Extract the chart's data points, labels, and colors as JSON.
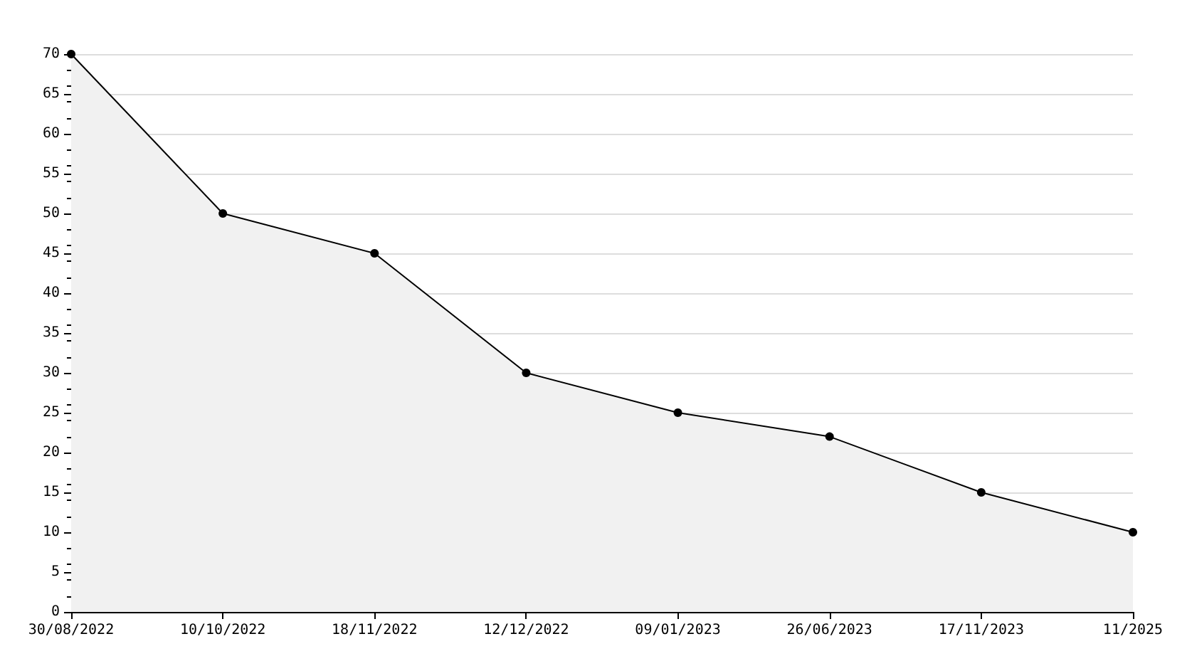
{
  "chart_data": {
    "type": "area",
    "categories": [
      "30/08/2022",
      "10/10/2022",
      "18/11/2022",
      "12/12/2022",
      "09/01/2023",
      "26/06/2023",
      "17/11/2023",
      "11/2025"
    ],
    "series": [
      {
        "color": "#000000",
        "values": [
          70,
          50,
          45,
          30,
          25,
          22,
          15,
          10
        ]
      }
    ],
    "ylim": [
      0,
      70
    ],
    "yticks": [
      0,
      5,
      10,
      15,
      20,
      25,
      30,
      35,
      40,
      45,
      50,
      55,
      60,
      65,
      70
    ],
    "grid": "y",
    "marker": "circle",
    "line_style": "solid"
  }
}
